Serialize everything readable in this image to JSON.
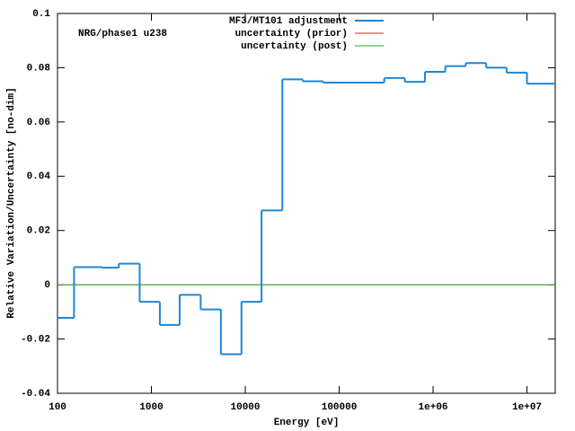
{
  "chart_data": {
    "type": "step",
    "annotation": "NRG/phase1 u238",
    "xlabel": "Energy [eV]",
    "ylabel": "Relative Variation/Uncertainty [no-dim]",
    "xscale": "log",
    "xlim": [
      100,
      20000000
    ],
    "ylim": [
      -0.04,
      0.1
    ],
    "xticks": [
      100,
      1000,
      10000,
      100000,
      {
        "value": 1000000,
        "label": "1e+06"
      },
      {
        "value": 10000000,
        "label": "1e+07"
      }
    ],
    "yticks": [
      -0.04,
      -0.02,
      0,
      0.02,
      0.04,
      0.06,
      0.08,
      0.1
    ],
    "legend": "top",
    "series": [
      {
        "name": "MF3/MT101 adjustment",
        "color": "#1f86d6",
        "bins": [
          100,
          150,
          300,
          450,
          750,
          1230,
          2000,
          3350,
          5500,
          9100,
          14900,
          24800,
          40900,
          67400,
          302000,
          500000,
          820000,
          1350000,
          2230000,
          3680000,
          6070000,
          10000000,
          20000000
        ],
        "values": [
          -0.0122,
          0.0065,
          0.0063,
          0.0078,
          -0.0063,
          -0.0148,
          -0.0037,
          -0.0091,
          -0.0256,
          -0.0063,
          0.0274,
          0.0757,
          0.075,
          0.0745,
          0.0762,
          0.0748,
          0.0785,
          0.0806,
          0.0817,
          0.08,
          0.0782,
          0.0741
        ]
      },
      {
        "name": "uncertainty (prior)",
        "color": "#e0201b",
        "values": [
          0
        ]
      },
      {
        "name": "uncertainty (post)",
        "color": "#21a821",
        "values": [
          0
        ]
      }
    ]
  }
}
